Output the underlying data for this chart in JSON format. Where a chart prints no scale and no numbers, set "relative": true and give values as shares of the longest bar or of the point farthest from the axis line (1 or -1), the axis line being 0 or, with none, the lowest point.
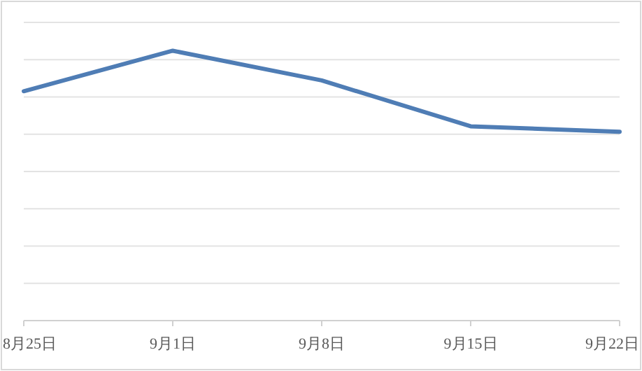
{
  "chart_data": {
    "type": "line",
    "relative": true,
    "grid": "y",
    "categories": [
      "8月25日",
      "9月1日",
      "9月8日",
      "9月15日",
      "9月22日"
    ],
    "series": [
      {
        "color": "#4f7db5",
        "values": [
          0.85,
          1,
          0.89,
          0.72,
          0.7
        ]
      }
    ]
  }
}
